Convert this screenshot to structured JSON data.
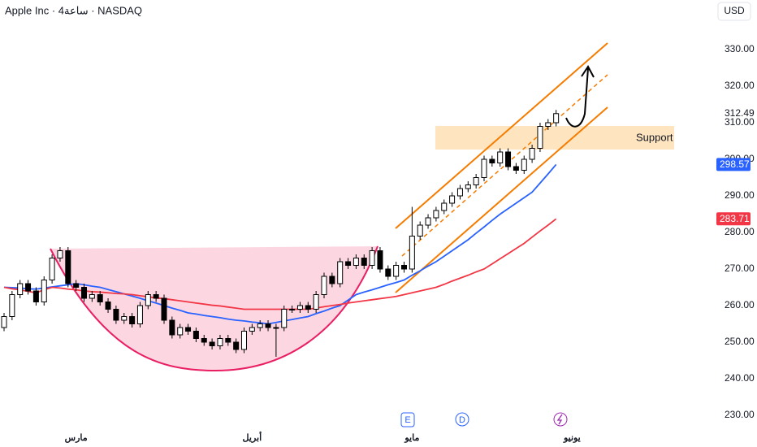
{
  "chart_data": {
    "type": "candlestick",
    "title": "Apple Inc · 4ساعة · NASDAQ",
    "categories": [
      null,
      null,
      null,
      null,
      null,
      null,
      null,
      null,
      null,
      "مارس",
      null,
      null,
      null,
      null,
      null,
      null,
      null,
      null,
      null,
      null,
      null,
      null,
      null,
      null,
      null,
      null,
      null,
      null,
      null,
      null,
      null,
      "أبريل",
      null,
      null,
      null,
      null,
      null,
      null,
      null,
      null,
      null,
      null,
      null,
      null,
      null,
      null,
      null,
      null,
      null,
      null,
      null,
      "مايو",
      null,
      null,
      null,
      null,
      null,
      null,
      null,
      null,
      null,
      null,
      null,
      null,
      null,
      null,
      null,
      null,
      null,
      null,
      null,
      "يونيو"
    ],
    "open": [
      254,
      257,
      263,
      266,
      264,
      261,
      267,
      273,
      275,
      266,
      265,
      262,
      263,
      261,
      259,
      256,
      257,
      255,
      260,
      263,
      262,
      256,
      252,
      254,
      253,
      251,
      250,
      249,
      251,
      250,
      248,
      253,
      254,
      255,
      254,
      254,
      259,
      259,
      260,
      259,
      263,
      268,
      266,
      272,
      271,
      273,
      271,
      275,
      270,
      268,
      271,
      270,
      279,
      282,
      284,
      286,
      288,
      290,
      292,
      293,
      295,
      300,
      299,
      302,
      298,
      297,
      300,
      303,
      309,
      310,
      null,
      null
    ],
    "high": [
      258,
      264,
      267,
      267,
      265,
      268,
      274,
      276,
      276,
      267,
      266,
      264,
      264,
      262,
      260,
      258,
      258,
      261,
      264,
      264,
      263,
      257,
      255,
      255,
      254,
      252,
      251,
      252,
      252,
      251,
      254,
      255,
      256,
      256,
      255,
      260,
      260,
      261,
      261,
      264,
      269,
      269,
      273,
      273,
      274,
      274,
      276,
      276,
      271,
      272,
      272,
      287,
      283,
      285,
      287,
      289,
      291,
      293,
      294,
      296,
      301,
      301,
      303,
      303,
      299,
      301,
      304,
      310,
      311,
      313.5,
      null,
      null
    ],
    "low": [
      253,
      256,
      262,
      263,
      260,
      260,
      266,
      272,
      265,
      264,
      261,
      261,
      260,
      258,
      255,
      255,
      254,
      254,
      259,
      261,
      255,
      251,
      251,
      252,
      250,
      249,
      248,
      248,
      249,
      247,
      247,
      252,
      253,
      253,
      246,
      253,
      258,
      258,
      258,
      258,
      262,
      265,
      265,
      270,
      270,
      270,
      270,
      269,
      267,
      267,
      269,
      269,
      278,
      281,
      283,
      285,
      287,
      289,
      291,
      292,
      294,
      298,
      298,
      297,
      296,
      296,
      299,
      302,
      308,
      309,
      null,
      null
    ],
    "close": [
      257,
      263,
      266,
      264,
      261,
      267,
      273,
      275,
      266,
      265,
      262,
      263,
      261,
      259,
      256,
      257,
      255,
      260,
      263,
      262,
      256,
      252,
      254,
      253,
      251,
      250,
      249,
      251,
      250,
      248,
      253,
      254,
      255,
      254,
      254,
      259,
      259,
      260,
      259,
      263,
      268,
      266,
      272,
      271,
      273,
      271,
      275,
      270,
      268,
      271,
      270,
      279,
      282,
      284,
      286,
      288,
      290,
      292,
      293,
      295,
      300,
      299,
      302,
      298,
      297,
      300,
      303,
      309,
      310,
      312.49,
      null,
      null
    ],
    "up_color": "#ffffff",
    "down_color": "#000000",
    "lines": [
      {
        "color": "#2962ff",
        "values": [
          265,
          264.9,
          264.8,
          264.6,
          264.5,
          264.8,
          265.1,
          265.4,
          265.7,
          266,
          265.7,
          265.3,
          265,
          264.4,
          263.8,
          263.2,
          262.6,
          262,
          261.3,
          260.7,
          260,
          259.3,
          258.7,
          258,
          257.7,
          257.3,
          257,
          256.7,
          256.3,
          256,
          255.8,
          255.5,
          255.3,
          255,
          255.4,
          255.8,
          256.2,
          256.6,
          257,
          257.8,
          258.5,
          259.3,
          260,
          261.5,
          263,
          263.7,
          264.3,
          265,
          265.7,
          266.3,
          267,
          268.3,
          269.5,
          270.8,
          272,
          273.5,
          275,
          276.5,
          278,
          279.8,
          281.5,
          283.3,
          285,
          286.5,
          288,
          289.5,
          291,
          293.5,
          296,
          298.57,
          null,
          null
        ]
      },
      {
        "color": "#f23645",
        "values": [
          265,
          264.6,
          264.3,
          263.9,
          263.5,
          264.3,
          265,
          264.8,
          264.5,
          264.3,
          264,
          263.8,
          263.7,
          263.5,
          263.3,
          263.2,
          263,
          262.7,
          262.4,
          262.1,
          261.9,
          261.6,
          261.3,
          261,
          260.7,
          260.4,
          260.1,
          259.9,
          259.6,
          259.3,
          259,
          259,
          259,
          259,
          259,
          259,
          259,
          259,
          259,
          259.3,
          259.7,
          260,
          260.3,
          260.7,
          261,
          261.3,
          261.6,
          261.9,
          262.2,
          262.5,
          263,
          263.5,
          264,
          264.5,
          265,
          265.8,
          266.7,
          267.5,
          268.3,
          269.2,
          270,
          271.4,
          272.8,
          274.2,
          275.6,
          277,
          278.7,
          280.4,
          282,
          283.71,
          null,
          null
        ]
      }
    ],
    "ylim": [
      227,
      341
    ],
    "yticks": [
      {
        "value": 230,
        "label": "230.00"
      },
      {
        "value": 240,
        "label": "240.00"
      },
      {
        "value": 250,
        "label": "250.00"
      },
      {
        "value": 260,
        "label": "260.00"
      },
      {
        "value": 270,
        "label": "270.00"
      },
      {
        "value": 280,
        "label": "280.00"
      },
      {
        "value": 290,
        "label": "290.00"
      },
      {
        "value": 300,
        "label": "300.00"
      },
      {
        "value": 310,
        "label": "310.00"
      },
      {
        "value": 320,
        "label": "320.00"
      },
      {
        "value": 330,
        "label": "330.00"
      }
    ]
  },
  "ui": {
    "currency": "USD",
    "support_label": "Support",
    "events": [
      "E",
      "D"
    ]
  }
}
